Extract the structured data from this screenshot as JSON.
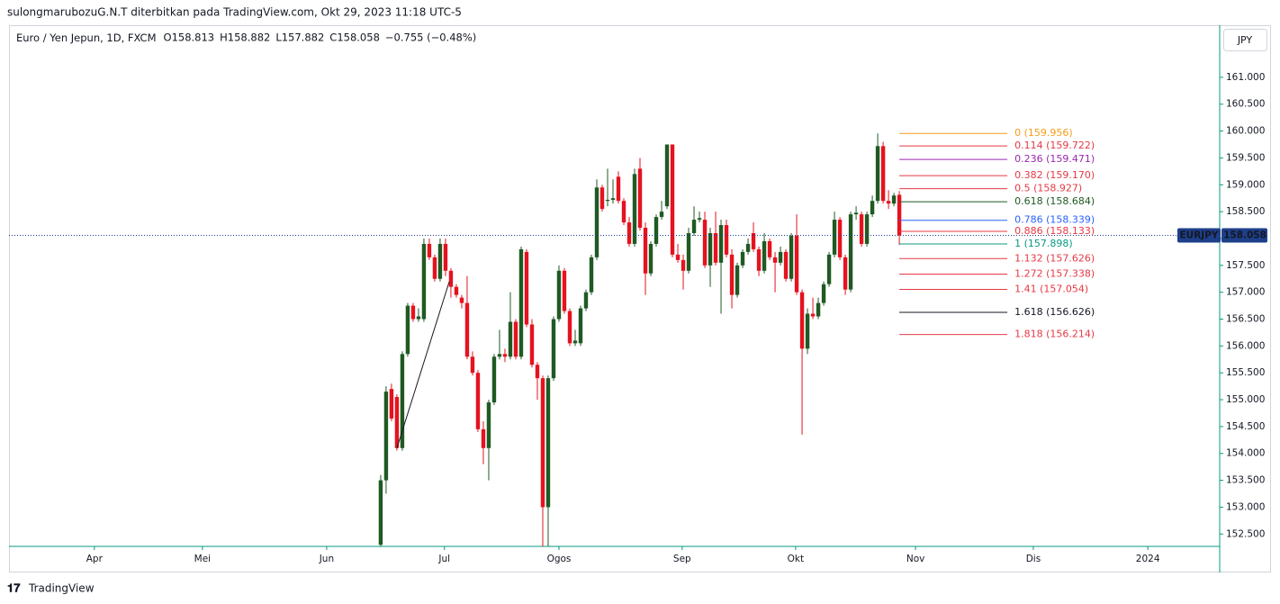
{
  "header": {
    "publisher": "sulongmarubozuG.N.T diterbitkan pada TradingView.com, Okt 29, 2023 11:18 UTC-5",
    "brand": "TradingView"
  },
  "chart_data": {
    "type": "candlestick",
    "title": "Euro / Yen Jepun, 1D, FXCM",
    "legend_values": [
      "O158.813",
      "H158.882",
      "L157.882",
      "C158.058",
      "−0.755 (−0.48%)"
    ],
    "currency": "JPY",
    "symbol": "EURJPY",
    "last_price": 158.058,
    "up_color": "#1f5a23",
    "down_color": "#e5121f",
    "x": [
      0,
      1,
      2,
      3,
      4,
      5,
      6,
      7,
      8,
      9,
      10,
      11,
      12,
      13,
      14,
      15,
      16,
      17,
      18,
      19,
      20,
      21,
      22,
      23,
      24,
      25,
      26,
      27,
      28,
      29,
      30,
      31,
      32,
      33,
      34,
      35,
      36,
      37,
      38,
      39,
      40,
      41,
      42,
      43,
      44,
      45,
      46,
      47,
      48,
      49,
      50,
      51,
      52,
      53,
      54,
      55,
      56,
      57,
      58,
      59,
      60,
      61,
      62,
      63,
      64,
      65,
      66,
      67,
      68,
      69,
      70,
      71,
      72,
      73,
      74,
      75,
      76,
      77,
      78,
      79,
      80,
      81,
      82,
      83,
      84,
      85,
      86,
      87,
      88,
      89,
      90,
      91,
      92,
      93,
      94,
      95,
      96
    ],
    "open": [
      152.3,
      153.5,
      155.2,
      155.05,
      154.1,
      155.85,
      156.75,
      156.5,
      156.5,
      157.9,
      157.65,
      157.25,
      157.9,
      157.4,
      157.1,
      156.9,
      156.8,
      155.8,
      155.5,
      154.45,
      154.1,
      154.95,
      155.8,
      155.85,
      155.8,
      156.45,
      155.8,
      157.75,
      156.4,
      155.65,
      155.4,
      153.0,
      155.4,
      156.5,
      157.4,
      156.65,
      156.05,
      156.05,
      156.7,
      157.0,
      157.65,
      158.95,
      158.7,
      158.72,
      159.15,
      158.7,
      158.3,
      157.9,
      159.3,
      158.2,
      157.35,
      157.9,
      158.4,
      158.6,
      159.75,
      157.7,
      157.6,
      157.4,
      158.1,
      158.35,
      158.35,
      157.5,
      158.1,
      157.55,
      158.25,
      157.7,
      156.95,
      157.5,
      157.75,
      158.1,
      157.8,
      157.4,
      157.95,
      157.65,
      157.55,
      157.75,
      157.25,
      158.05,
      157.0,
      155.95,
      156.6,
      156.55,
      156.8,
      157.15,
      157.7,
      158.35,
      157.65,
      157.05,
      158.45,
      158.45,
      157.9,
      158.45,
      158.7,
      159.72,
      158.7,
      158.65,
      158.813
    ],
    "high": [
      153.6,
      155.25,
      155.3,
      155.1,
      155.9,
      156.8,
      156.8,
      156.7,
      158.0,
      158.0,
      157.7,
      158.0,
      158.0,
      157.45,
      157.15,
      156.95,
      157.3,
      155.9,
      155.55,
      154.6,
      155.0,
      155.85,
      156.3,
      155.95,
      157.0,
      156.5,
      157.85,
      157.8,
      156.5,
      155.7,
      155.45,
      155.45,
      156.55,
      157.5,
      157.45,
      156.7,
      156.3,
      156.75,
      157.05,
      157.7,
      159.1,
      159.0,
      159.3,
      159.1,
      159.25,
      158.75,
      158.4,
      159.3,
      159.5,
      158.3,
      157.95,
      158.45,
      158.7,
      159.75,
      159.75,
      157.9,
      157.7,
      158.2,
      158.6,
      158.5,
      158.5,
      158.2,
      158.5,
      158.35,
      158.35,
      157.8,
      157.55,
      157.8,
      158.0,
      158.3,
      157.85,
      158.1,
      158.0,
      157.75,
      157.85,
      157.8,
      158.1,
      158.45,
      157.05,
      156.7,
      156.9,
      156.9,
      157.2,
      157.75,
      158.5,
      158.4,
      157.7,
      158.5,
      158.6,
      158.5,
      158.5,
      158.8,
      159.956,
      159.8,
      158.9,
      158.85,
      158.882
    ],
    "low": [
      152.27,
      153.25,
      154.6,
      154.05,
      154.05,
      155.8,
      156.45,
      156.45,
      156.45,
      157.6,
      157.2,
      157.2,
      157.3,
      156.9,
      156.9,
      156.7,
      155.75,
      155.45,
      154.4,
      153.8,
      153.5,
      154.9,
      155.75,
      155.7,
      155.75,
      155.75,
      155.75,
      156.35,
      155.6,
      155.0,
      152.27,
      152.27,
      155.35,
      156.45,
      156.6,
      156.0,
      156.0,
      156.0,
      156.65,
      156.95,
      157.6,
      158.5,
      158.6,
      158.65,
      158.65,
      158.25,
      157.85,
      157.85,
      158.15,
      156.95,
      157.3,
      157.85,
      158.35,
      158.55,
      157.65,
      157.55,
      157.05,
      157.35,
      158.05,
      158.3,
      157.45,
      157.1,
      157.5,
      156.6,
      157.65,
      156.7,
      156.9,
      157.45,
      157.7,
      157.75,
      157.3,
      157.35,
      157.6,
      157.0,
      157.5,
      157.2,
      157.2,
      156.95,
      154.35,
      155.85,
      156.5,
      156.5,
      156.75,
      157.1,
      157.65,
      157.6,
      156.95,
      157.0,
      158.35,
      157.85,
      157.85,
      158.4,
      158.65,
      158.65,
      158.55,
      158.6,
      157.882
    ],
    "close": [
      153.5,
      155.15,
      154.65,
      154.1,
      155.85,
      156.75,
      156.5,
      156.55,
      157.9,
      157.65,
      157.25,
      157.9,
      157.4,
      157.1,
      156.95,
      156.8,
      155.8,
      155.5,
      154.45,
      154.1,
      154.95,
      155.8,
      155.85,
      155.8,
      156.45,
      155.8,
      157.8,
      156.4,
      155.65,
      155.4,
      153.0,
      155.4,
      156.5,
      157.4,
      156.65,
      156.05,
      156.1,
      156.7,
      157.0,
      157.65,
      158.95,
      158.55,
      158.72,
      158.75,
      158.7,
      158.3,
      157.9,
      159.2,
      158.2,
      157.35,
      157.9,
      158.4,
      158.5,
      159.75,
      157.7,
      157.6,
      157.4,
      158.1,
      158.35,
      158.38,
      157.5,
      158.1,
      157.55,
      158.25,
      157.7,
      156.95,
      157.5,
      157.75,
      157.9,
      157.8,
      157.4,
      157.95,
      157.65,
      157.55,
      157.75,
      157.25,
      158.05,
      157.0,
      155.95,
      156.6,
      156.55,
      156.8,
      157.15,
      157.7,
      158.35,
      157.65,
      157.05,
      158.45,
      158.48,
      157.9,
      158.45,
      158.7,
      159.72,
      158.7,
      158.65,
      158.8,
      158.058
    ],
    "xlim": [
      -68.8,
      155.3
    ],
    "xticks": [
      {
        "value": -53,
        "label": "Apr"
      },
      {
        "value": -33,
        "label": "Mei"
      },
      {
        "value": -10,
        "label": "Jun"
      },
      {
        "value": 11.8,
        "label": "Jul"
      },
      {
        "value": 33,
        "label": "Ogos"
      },
      {
        "value": 55.8,
        "label": "Sep"
      },
      {
        "value": 76.8,
        "label": "Okt"
      },
      {
        "value": 99,
        "label": "Nov"
      },
      {
        "value": 120.8,
        "label": "Dis"
      },
      {
        "value": 142,
        "label": "2024"
      }
    ],
    "ylim": [
      152.27,
      161.97
    ],
    "yticks": [
      {
        "value": 152.5,
        "label": "152.500"
      },
      {
        "value": 153,
        "label": "153.000"
      },
      {
        "value": 153.5,
        "label": "153.500"
      },
      {
        "value": 154,
        "label": "154.000"
      },
      {
        "value": 154.5,
        "label": "154.500"
      },
      {
        "value": 155,
        "label": "155.000"
      },
      {
        "value": 155.5,
        "label": "155.500"
      },
      {
        "value": 156,
        "label": "156.000"
      },
      {
        "value": 156.5,
        "label": "156.500"
      },
      {
        "value": 157,
        "label": "157.000"
      },
      {
        "value": 157.5,
        "label": "157.500"
      },
      {
        "value": 158,
        "label": "158.000"
      },
      {
        "value": 158.5,
        "label": "158.500"
      },
      {
        "value": 159,
        "label": "159.000"
      },
      {
        "value": 159.5,
        "label": "159.500"
      },
      {
        "value": 160,
        "label": "160.000"
      },
      {
        "value": 160.5,
        "label": "160.500"
      },
      {
        "value": 161,
        "label": "161.000"
      }
    ],
    "trendline": {
      "x": [
        3,
        12.7
      ],
      "y": [
        154.1,
        157.2
      ],
      "color": "#131722"
    },
    "fib_levels": [
      {
        "level": 0,
        "price": {
          "value": 159.956,
          "label": "(159.956)"
        },
        "color": "#f59c1a"
      },
      {
        "level": 0.114,
        "price": {
          "value": 159.722,
          "label": "(159.722)"
        },
        "color": "#e53945"
      },
      {
        "level": 0.236,
        "price": {
          "value": 159.471,
          "label": "(159.471)"
        },
        "color": "#9c27b0"
      },
      {
        "level": 0.382,
        "price": {
          "value": 159.17,
          "label": "(159.170)"
        },
        "color": "#e53945"
      },
      {
        "level": 0.5,
        "price": {
          "value": 158.927,
          "label": "(158.927)"
        },
        "color": "#e53945"
      },
      {
        "level": 0.618,
        "price": {
          "value": 158.684,
          "label": "(158.684)"
        },
        "color": "#1f5a23"
      },
      {
        "level": 0.786,
        "price": {
          "value": 158.339,
          "label": "(158.339)"
        },
        "color": "#2962ff"
      },
      {
        "level": 0.886,
        "price": {
          "value": 158.133,
          "label": "(158.133)"
        },
        "color": "#e53945"
      },
      {
        "level": 1,
        "price": {
          "value": 157.898,
          "label": "(157.898)"
        },
        "color": "#089981"
      },
      {
        "level": 1.132,
        "price": {
          "value": 157.626,
          "label": "(157.626)"
        },
        "color": "#e53945"
      },
      {
        "level": 1.272,
        "price": {
          "value": 157.338,
          "label": "(157.338)"
        },
        "color": "#e53945"
      },
      {
        "level": 1.41,
        "price": {
          "value": 157.054,
          "label": "(157.054)"
        },
        "color": "#e53945"
      },
      {
        "level": 1.618,
        "price": {
          "value": 156.626,
          "label": "(156.626)"
        },
        "color": "#131722"
      },
      {
        "level": 1.818,
        "price": {
          "value": 156.214,
          "label": "(156.214)"
        },
        "color": "#e53945"
      }
    ],
    "fib_anchor_x": 96
  }
}
